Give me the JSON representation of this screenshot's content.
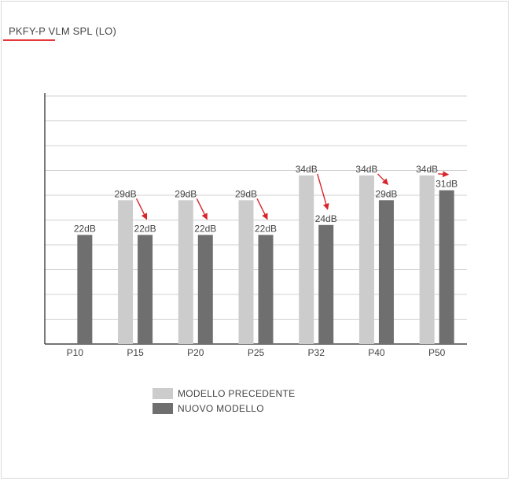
{
  "title": "PKFY-P VLM SPL (LO)",
  "colors": {
    "previous": "#cccccc",
    "new": "#6f6f6f",
    "arrow": "#d7262b",
    "grid": "#d0d0d0",
    "axis": "#222222",
    "text": "#444444",
    "accent": "#e5383b"
  },
  "chart_data": {
    "type": "bar",
    "categories": [
      "P10",
      "P15",
      "P20",
      "P25",
      "P32",
      "P40",
      "P50"
    ],
    "series": [
      {
        "name": "MODELLO PRECEDENTE",
        "values": [
          null,
          29,
          29,
          29,
          34,
          34,
          34
        ],
        "labels": [
          "",
          "29dB",
          "29dB",
          "29dB",
          "34dB",
          "34dB",
          "34dB"
        ]
      },
      {
        "name": "NUOVO MODELLO",
        "values": [
          22,
          22,
          22,
          22,
          24,
          29,
          31
        ],
        "labels": [
          "22dB",
          "22dB",
          "22dB",
          "22dB",
          "24dB",
          "29dB",
          "31dB"
        ]
      }
    ],
    "ylim": [
      0,
      50
    ],
    "grid": true,
    "legend_position": "bottom",
    "annotations": "red arrows from previous-model value to new-model value"
  }
}
